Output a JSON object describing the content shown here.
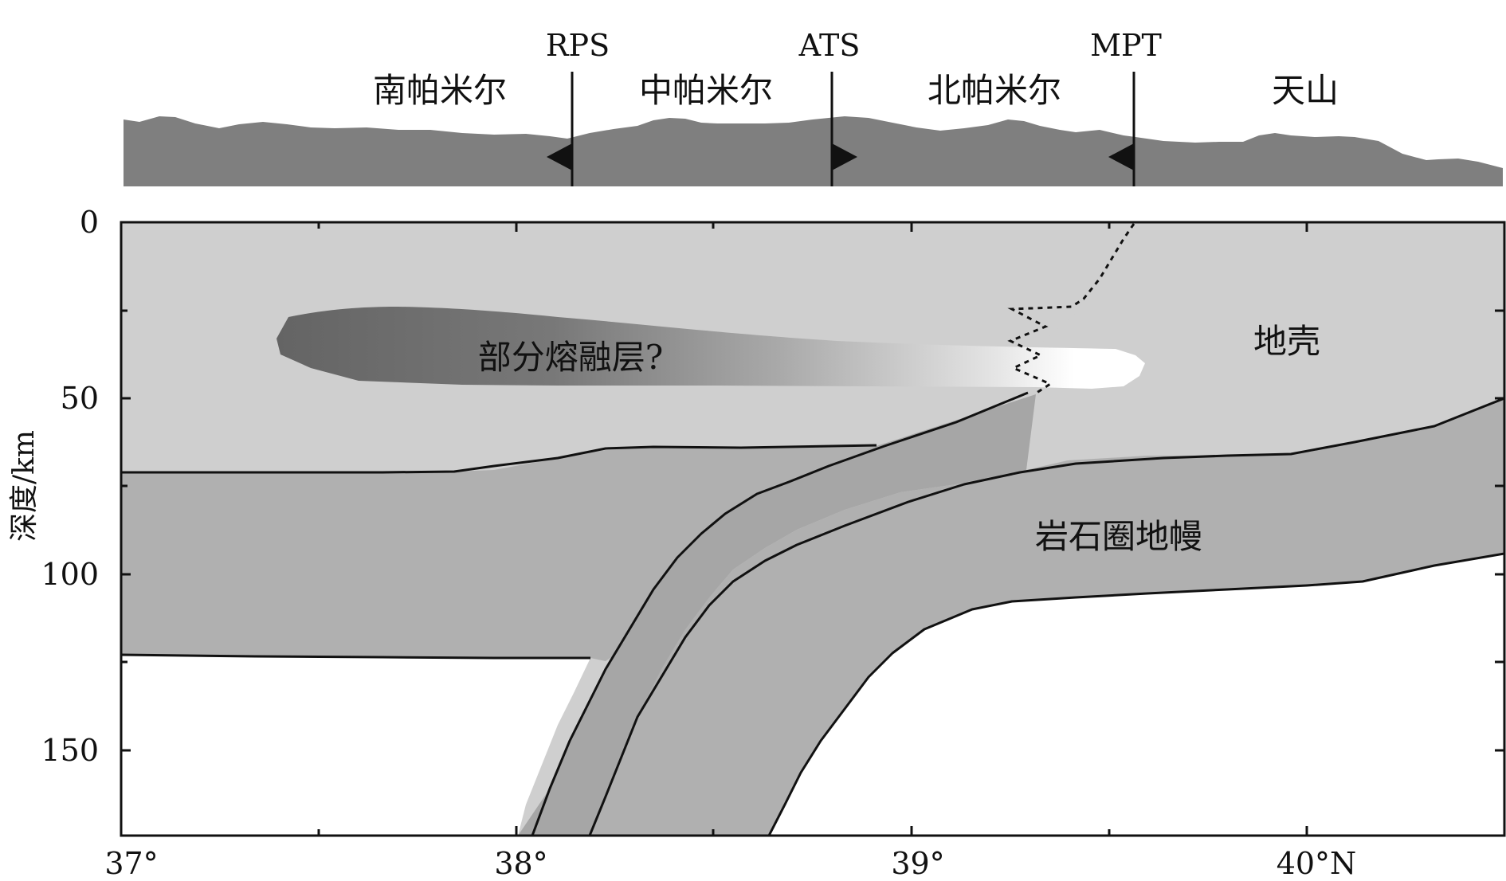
{
  "diagram": {
    "regions": [
      "南帕米尔",
      "中帕米尔",
      "北帕米尔",
      "天山"
    ],
    "faults": [
      "RPS",
      "ATS",
      "MPT"
    ],
    "layers": {
      "partial_melt": "部分熔融层?",
      "crust": "地壳",
      "lithospheric_mantle": "岩石圈地幔"
    },
    "y_axis": {
      "title": "深度/km",
      "ticks": [
        "0",
        "50",
        "100",
        "150"
      ]
    },
    "x_axis": {
      "ticks": [
        "37°",
        "38°",
        "39°",
        "40°N"
      ]
    },
    "colors": {
      "topography": "#7f7f7f",
      "crust_south": "#cfcfcf",
      "crust_north": "#a6a6a6",
      "mantle": "#b0b0b0",
      "slab_inner": "#a0a0a0",
      "melt_dark": "#646464"
    }
  }
}
